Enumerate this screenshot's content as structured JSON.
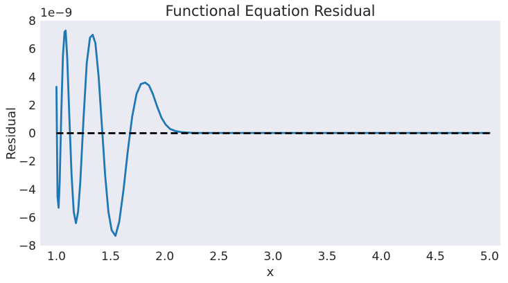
{
  "chart_data": {
    "type": "line",
    "title": "Functional Equation Residual",
    "xlabel": "x",
    "ylabel": "Residual",
    "y_offset_label": "1e−9",
    "y_scale": 1e-09,
    "xlim": [
      0.85,
      5.1
    ],
    "ylim": [
      -8,
      8
    ],
    "xticks": [
      1.0,
      1.5,
      2.0,
      2.5,
      3.0,
      3.5,
      4.0,
      4.5,
      5.0
    ],
    "xtick_labels": [
      "1.0",
      "1.5",
      "2.0",
      "2.5",
      "3.0",
      "3.5",
      "4.0",
      "4.5",
      "5.0"
    ],
    "yticks": [
      -8,
      -6,
      -4,
      -2,
      0,
      2,
      4,
      6,
      8
    ],
    "ytick_labels": [
      "−8",
      "−6",
      "−4",
      "−2",
      "0",
      "2",
      "4",
      "6",
      "8"
    ],
    "grid": false,
    "background": "#eaeaf2",
    "series": [
      {
        "style": "solid",
        "color": "#1f77b4",
        "x": [
          1.0,
          1.005,
          1.01,
          1.02,
          1.03,
          1.045,
          1.06,
          1.075,
          1.085,
          1.1,
          1.12,
          1.14,
          1.16,
          1.18,
          1.2,
          1.22,
          1.25,
          1.28,
          1.31,
          1.335,
          1.36,
          1.39,
          1.42,
          1.45,
          1.48,
          1.51,
          1.545,
          1.58,
          1.62,
          1.66,
          1.7,
          1.74,
          1.78,
          1.82,
          1.855,
          1.89,
          1.93,
          1.97,
          2.01,
          2.05,
          2.1,
          2.15,
          2.2,
          2.25,
          2.3,
          2.35,
          2.4,
          2.5,
          2.6,
          3.0,
          3.5,
          4.0,
          4.5,
          5.0
        ],
        "y": [
          3.3,
          -0.5,
          -4.5,
          -5.3,
          -3.5,
          1.5,
          5.5,
          7.2,
          7.3,
          5.3,
          1.0,
          -3.0,
          -5.6,
          -6.4,
          -5.6,
          -3.5,
          1.0,
          5.0,
          6.8,
          7.0,
          6.4,
          4.0,
          0.5,
          -3.0,
          -5.6,
          -6.9,
          -7.3,
          -6.3,
          -4.0,
          -1.2,
          1.2,
          2.8,
          3.5,
          3.6,
          3.4,
          2.8,
          1.9,
          1.1,
          0.6,
          0.3,
          0.15,
          0.08,
          0.05,
          0.03,
          0.02,
          0.02,
          0.02,
          0.02,
          0.02,
          0.02,
          0.02,
          0.02,
          0.02,
          0.02
        ]
      },
      {
        "style": "dashed",
        "color": "#111111",
        "x": [
          1.0,
          5.0
        ],
        "y": [
          0,
          0
        ]
      }
    ]
  }
}
